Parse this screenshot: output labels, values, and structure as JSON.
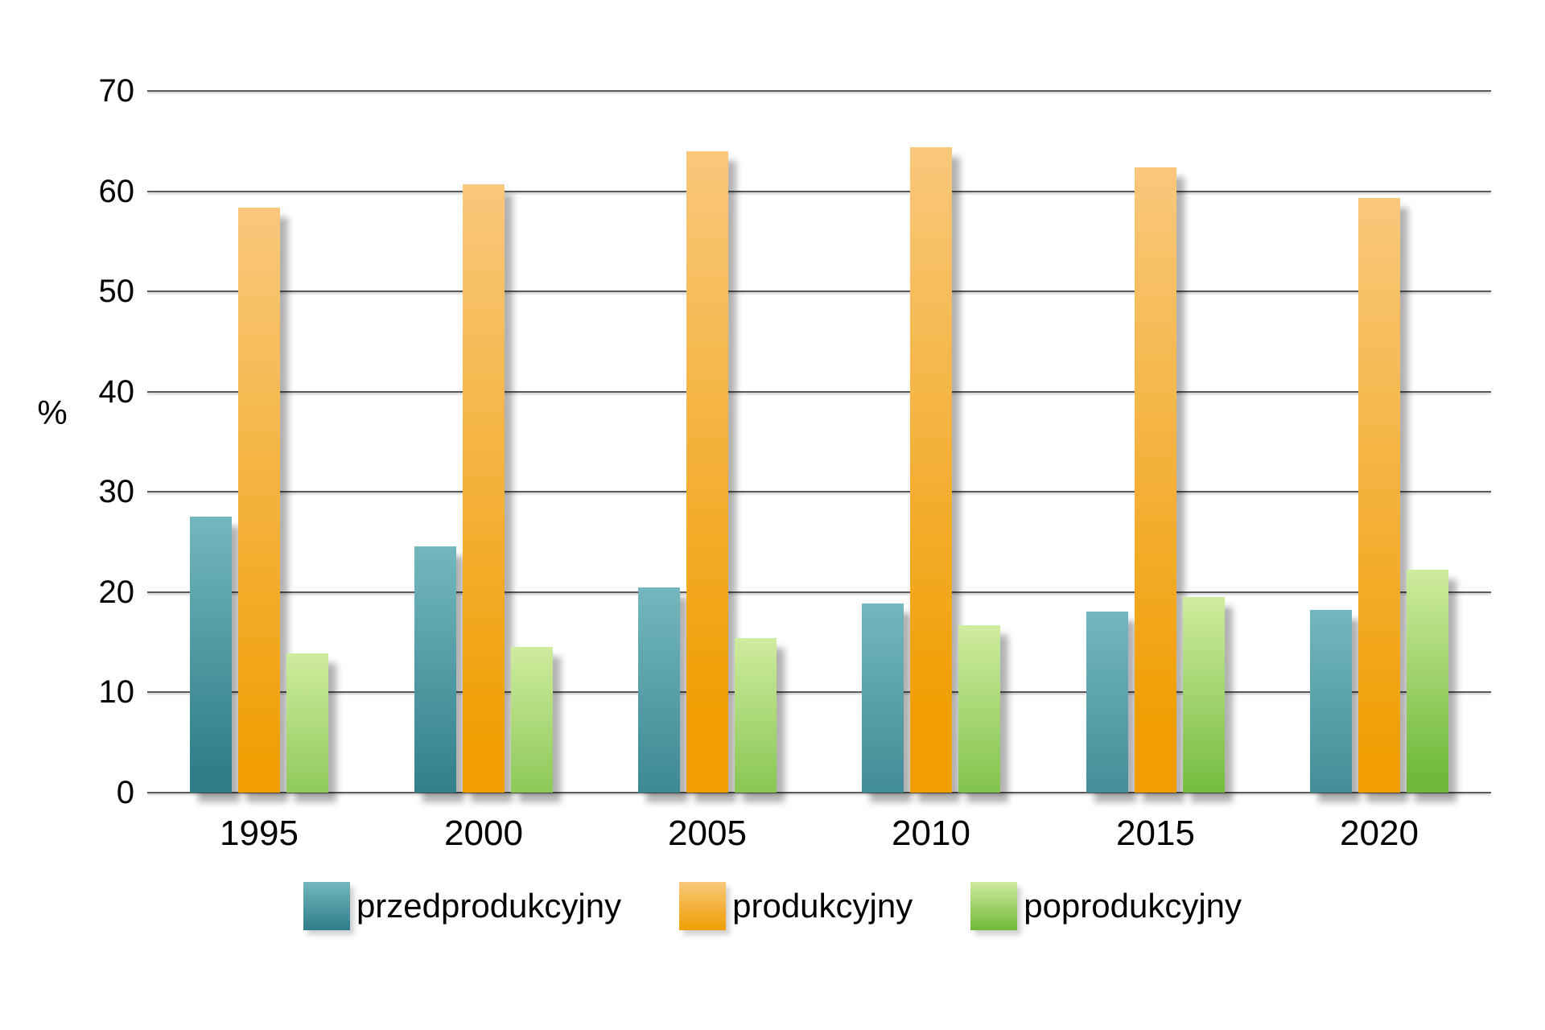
{
  "chart_data": {
    "type": "bar",
    "categories": [
      "1995",
      "2000",
      "2005",
      "2010",
      "2015",
      "2020"
    ],
    "series": [
      {
        "name": "przedprodukcyjny",
        "values": [
          27.5,
          24.6,
          20.5,
          18.9,
          18.1,
          18.2
        ],
        "color_top": "#74b7be",
        "color_bottom": "#2e7d89"
      },
      {
        "name": "produkcyjny",
        "values": [
          58.4,
          60.7,
          64.0,
          64.4,
          62.4,
          59.3
        ],
        "color_top": "#f9c87c",
        "color_bottom": "#f09e02"
      },
      {
        "name": "poprodukcyjny",
        "values": [
          13.9,
          14.5,
          15.4,
          16.7,
          19.5,
          22.2
        ],
        "color_top": "#cfec9e",
        "color_bottom": "#6fb93a"
      }
    ],
    "title": "",
    "xlabel": "",
    "ylabel": "%",
    "ylim": [
      0,
      70
    ],
    "yticks": [
      0,
      10,
      20,
      30,
      40,
      50,
      60,
      70
    ],
    "grid": true,
    "legend_position": "bottom"
  },
  "colors": {
    "background": "#ffffff",
    "gridline": "#5a5a5a",
    "text": "#000000"
  }
}
